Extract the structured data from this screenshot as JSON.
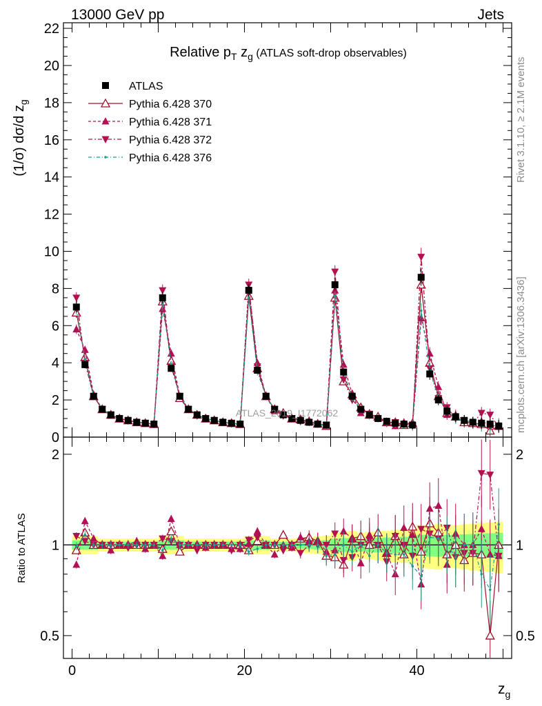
{
  "header": {
    "left": "13000 GeV pp",
    "right": "Jets"
  },
  "title": {
    "prefix": "Relative p",
    "sub_t": "T",
    "mid": " z",
    "sub_g": "g",
    "suffix": " (ATLAS soft-drop observables)"
  },
  "ylabel_top": {
    "a": "(1/σ) dσ/d z",
    "sub": "g"
  },
  "ylabel_bottom": "Ratio to ATLAS",
  "xlabel": {
    "main": "z",
    "sub": "g"
  },
  "watermark": "ATLAS_2019_I1772062",
  "side_text_1": "Rivet 3.1.10, ≥ 2.1M events",
  "side_text_2": "mcplots.cern.ch [arXiv:1306.3436]",
  "colors": {
    "atlas": "#000000",
    "p370": "#9b1028",
    "p371": "#b20f55",
    "p372": "#b2104f",
    "p376": "#1d9c86",
    "band_yellow": "#ffff80",
    "band_green": "#80ff80"
  },
  "legend": [
    {
      "label": "ATLAS",
      "marker": "square"
    },
    {
      "label": "Pythia 6.428 370",
      "marker": "open-triangle-up"
    },
    {
      "label": "Pythia 6.428 371",
      "marker": "triangle-up"
    },
    {
      "label": "Pythia 6.428 372",
      "marker": "triangle-down"
    },
    {
      "label": "Pythia 6.428 376",
      "marker": "dot"
    }
  ],
  "chart_data": {
    "type": "scatter",
    "x": [
      0.5,
      1.5,
      2.5,
      3.5,
      4.5,
      5.5,
      6.5,
      7.5,
      8.5,
      9.5,
      10.5,
      11.5,
      12.5,
      13.5,
      14.5,
      15.5,
      16.5,
      17.5,
      18.5,
      19.5,
      20.5,
      21.5,
      22.5,
      23.5,
      24.5,
      25.5,
      26.5,
      27.5,
      28.5,
      29.5,
      30.5,
      31.5,
      32.5,
      33.5,
      34.5,
      35.5,
      36.5,
      37.5,
      38.5,
      39.5,
      40.5,
      41.5,
      42.5,
      43.5,
      44.5,
      45.5,
      46.5,
      47.5,
      48.5,
      49.5
    ],
    "series": [
      {
        "name": "ATLAS",
        "values": [
          7.0,
          3.9,
          2.2,
          1.5,
          1.2,
          1.0,
          0.9,
          0.8,
          0.75,
          0.7,
          7.5,
          3.7,
          2.2,
          1.5,
          1.2,
          1.0,
          0.9,
          0.8,
          0.75,
          0.7,
          7.9,
          3.6,
          2.2,
          1.5,
          1.2,
          1.0,
          0.9,
          0.8,
          0.7,
          0.65,
          8.2,
          3.5,
          2.2,
          1.5,
          1.2,
          1.0,
          0.85,
          0.75,
          0.7,
          0.65,
          8.6,
          3.4,
          2.0,
          1.4,
          1.1,
          0.9,
          0.8,
          0.75,
          0.7,
          0.6
        ]
      },
      {
        "name": "Pythia 6.428 370",
        "values": [
          6.7,
          4.3,
          2.2,
          1.5,
          1.2,
          1.0,
          0.9,
          0.8,
          0.75,
          0.7,
          7.3,
          4.1,
          2.1,
          1.5,
          1.2,
          1.0,
          0.9,
          0.8,
          0.75,
          0.7,
          7.6,
          3.7,
          2.2,
          1.5,
          1.3,
          1.0,
          0.95,
          0.85,
          0.72,
          0.6,
          7.5,
          3.0,
          2.3,
          1.6,
          1.2,
          1.1,
          0.8,
          0.8,
          0.65,
          0.75,
          8.2,
          4.0,
          2.2,
          1.3,
          1.1,
          0.8,
          0.75,
          0.7,
          0.35,
          0.6
        ]
      },
      {
        "name": "Pythia 6.428 371",
        "values": [
          5.8,
          4.7,
          2.3,
          1.5,
          1.15,
          1.0,
          0.9,
          0.82,
          0.73,
          0.7,
          6.9,
          4.5,
          2.2,
          1.5,
          1.2,
          0.98,
          0.9,
          0.8,
          0.73,
          0.68,
          8.0,
          4.0,
          2.2,
          1.4,
          1.2,
          0.98,
          0.95,
          0.82,
          0.72,
          0.62,
          7.9,
          3.9,
          2.3,
          1.3,
          1.3,
          1.0,
          0.8,
          0.6,
          0.8,
          0.7,
          6.4,
          4.5,
          2.7,
          1.2,
          1.2,
          0.9,
          0.8,
          0.85,
          0.65,
          0.55
        ]
      },
      {
        "name": "Pythia 6.428 372",
        "values": [
          7.5,
          4.0,
          2.2,
          1.5,
          1.2,
          1.0,
          0.88,
          0.8,
          0.75,
          0.7,
          7.9,
          3.8,
          2.2,
          1.5,
          1.15,
          1.0,
          0.9,
          0.8,
          0.72,
          0.7,
          8.2,
          3.8,
          2.2,
          1.5,
          1.15,
          1.0,
          0.85,
          0.8,
          0.7,
          0.65,
          8.9,
          3.1,
          2.0,
          1.5,
          1.25,
          1.0,
          0.75,
          0.8,
          0.7,
          0.6,
          9.7,
          3.7,
          2.1,
          1.6,
          1.0,
          0.85,
          0.75,
          1.3,
          1.2,
          0.55
        ]
      },
      {
        "name": "Pythia 6.428 376",
        "values": [
          6.9,
          4.2,
          2.2,
          1.5,
          1.2,
          1.0,
          0.9,
          0.8,
          0.75,
          0.7,
          7.2,
          3.9,
          2.2,
          1.5,
          1.2,
          1.0,
          0.9,
          0.8,
          0.75,
          0.7,
          7.5,
          3.5,
          2.2,
          1.5,
          1.2,
          1.0,
          0.9,
          0.8,
          0.7,
          0.6,
          7.6,
          3.5,
          2.1,
          1.5,
          1.1,
          1.0,
          0.8,
          0.7,
          0.65,
          0.55,
          6.8,
          3.6,
          2.1,
          1.4,
          1.0,
          0.9,
          0.8,
          0.6,
          0.5,
          0.7
        ]
      }
    ],
    "ratio_series": [
      {
        "name": "Pythia 6.428 370",
        "values": [
          0.96,
          1.1,
          1.0,
          1.0,
          1.0,
          1.0,
          1.0,
          1.0,
          1.0,
          1.0,
          0.97,
          1.11,
          0.95,
          1.0,
          1.0,
          1.0,
          1.0,
          1.0,
          1.0,
          1.0,
          0.96,
          1.03,
          1.0,
          1.0,
          1.08,
          1.0,
          1.05,
          1.06,
          1.03,
          0.92,
          0.91,
          0.86,
          1.05,
          1.07,
          1.0,
          1.1,
          0.94,
          1.07,
          0.93,
          1.15,
          0.95,
          1.18,
          1.1,
          0.93,
          1.0,
          0.89,
          0.94,
          0.93,
          0.5,
          1.0
        ]
      },
      {
        "name": "Pythia 6.428 371",
        "values": [
          0.86,
          1.2,
          1.05,
          1.0,
          0.96,
          1.0,
          1.0,
          1.03,
          0.97,
          1.0,
          0.92,
          1.22,
          1.0,
          1.0,
          1.0,
          0.98,
          1.0,
          1.0,
          0.97,
          0.97,
          1.01,
          1.11,
          1.0,
          0.93,
          1.0,
          0.98,
          1.06,
          1.03,
          1.03,
          0.95,
          0.96,
          1.11,
          1.05,
          0.87,
          1.08,
          1.0,
          0.94,
          0.8,
          1.14,
          1.08,
          0.74,
          1.32,
          1.35,
          0.86,
          1.09,
          1.0,
          1.0,
          1.13,
          0.93,
          0.92
        ]
      },
      {
        "name": "Pythia 6.428 372",
        "values": [
          1.07,
          1.03,
          1.0,
          1.0,
          1.0,
          1.0,
          0.98,
          1.0,
          1.0,
          1.0,
          1.05,
          1.03,
          1.0,
          1.0,
          0.96,
          1.0,
          1.0,
          1.0,
          0.96,
          1.0,
          1.04,
          1.06,
          1.0,
          1.0,
          0.96,
          1.0,
          0.94,
          1.0,
          1.0,
          1.0,
          1.09,
          0.89,
          0.91,
          1.0,
          1.04,
          1.0,
          0.88,
          1.07,
          1.0,
          0.92,
          1.13,
          1.09,
          1.05,
          1.14,
          0.91,
          0.94,
          0.94,
          1.73,
          1.71,
          0.92
        ]
      },
      {
        "name": "Pythia 6.428 376",
        "values": [
          0.99,
          1.08,
          1.0,
          1.0,
          1.0,
          1.0,
          1.0,
          1.0,
          1.0,
          1.0,
          0.96,
          1.05,
          1.0,
          1.0,
          1.0,
          1.0,
          1.0,
          1.0,
          1.0,
          1.0,
          0.95,
          0.97,
          1.0,
          1.0,
          1.0,
          1.0,
          1.0,
          1.0,
          1.0,
          0.92,
          0.93,
          1.0,
          0.95,
          1.0,
          0.92,
          1.0,
          0.94,
          0.93,
          0.93,
          0.85,
          0.79,
          1.06,
          1.05,
          1.0,
          0.91,
          1.0,
          1.0,
          0.8,
          0.71,
          1.17
        ]
      }
    ],
    "xlim": [
      -1,
      51
    ],
    "ylim_main": [
      0,
      22.3
    ],
    "yticks_main": [
      "0",
      "2",
      "4",
      "6",
      "8",
      "10",
      "12",
      "14",
      "16",
      "18",
      "20",
      "22"
    ],
    "ylim_ratio": [
      0.42,
      2.28
    ],
    "ratio_log_scale": true,
    "yticks_ratio": [
      "0.5",
      "1",
      "2"
    ],
    "xticks": [
      "0",
      "20",
      "40"
    ],
    "grid": false,
    "legend_position": "top-left"
  }
}
